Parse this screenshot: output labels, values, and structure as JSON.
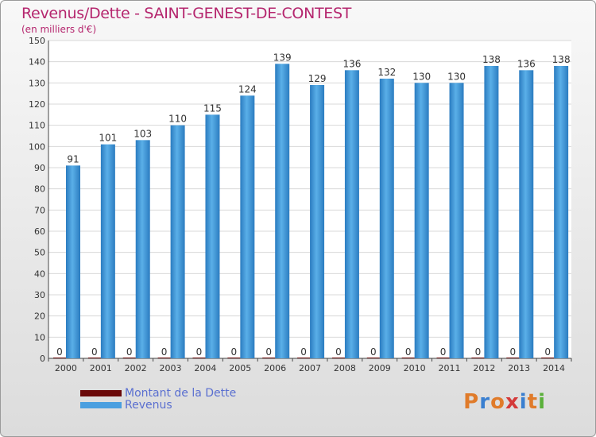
{
  "header": {
    "title": "Revenus/Dette - SAINT-GENEST-DE-CONTEST",
    "subtitle": "(en milliers d'€)"
  },
  "legend": {
    "items": [
      {
        "label": "Montant de la Dette",
        "color": "#6b0a0a"
      },
      {
        "label": "Revenus",
        "color": "#4a9fe0"
      }
    ]
  },
  "logo": {
    "text": "Proxiti",
    "colors": [
      "#e07b2a",
      "#3a7fd0",
      "#e07b2a",
      "#d43a3a",
      "#3a7fd0",
      "#e07b2a",
      "#5ab03a"
    ]
  },
  "chart_data": {
    "type": "bar",
    "categories": [
      "2000",
      "2001",
      "2002",
      "2003",
      "2004",
      "2005",
      "2006",
      "2007",
      "2008",
      "2009",
      "2010",
      "2011",
      "2012",
      "2013",
      "2014"
    ],
    "series": [
      {
        "name": "Montant de la Dette",
        "color": "#6b0a0a",
        "values": [
          0,
          0,
          0,
          0,
          0,
          0,
          0,
          0,
          0,
          0,
          0,
          0,
          0,
          0,
          0
        ]
      },
      {
        "name": "Revenus",
        "color": "#4a9fe0",
        "values": [
          91,
          101,
          103,
          110,
          115,
          124,
          139,
          129,
          136,
          132,
          130,
          130,
          138,
          136,
          138
        ]
      }
    ],
    "ylim": [
      0,
      150
    ],
    "yticks": [
      0,
      10,
      20,
      30,
      40,
      50,
      60,
      70,
      80,
      90,
      100,
      110,
      120,
      130,
      140,
      150
    ],
    "grid": true
  }
}
